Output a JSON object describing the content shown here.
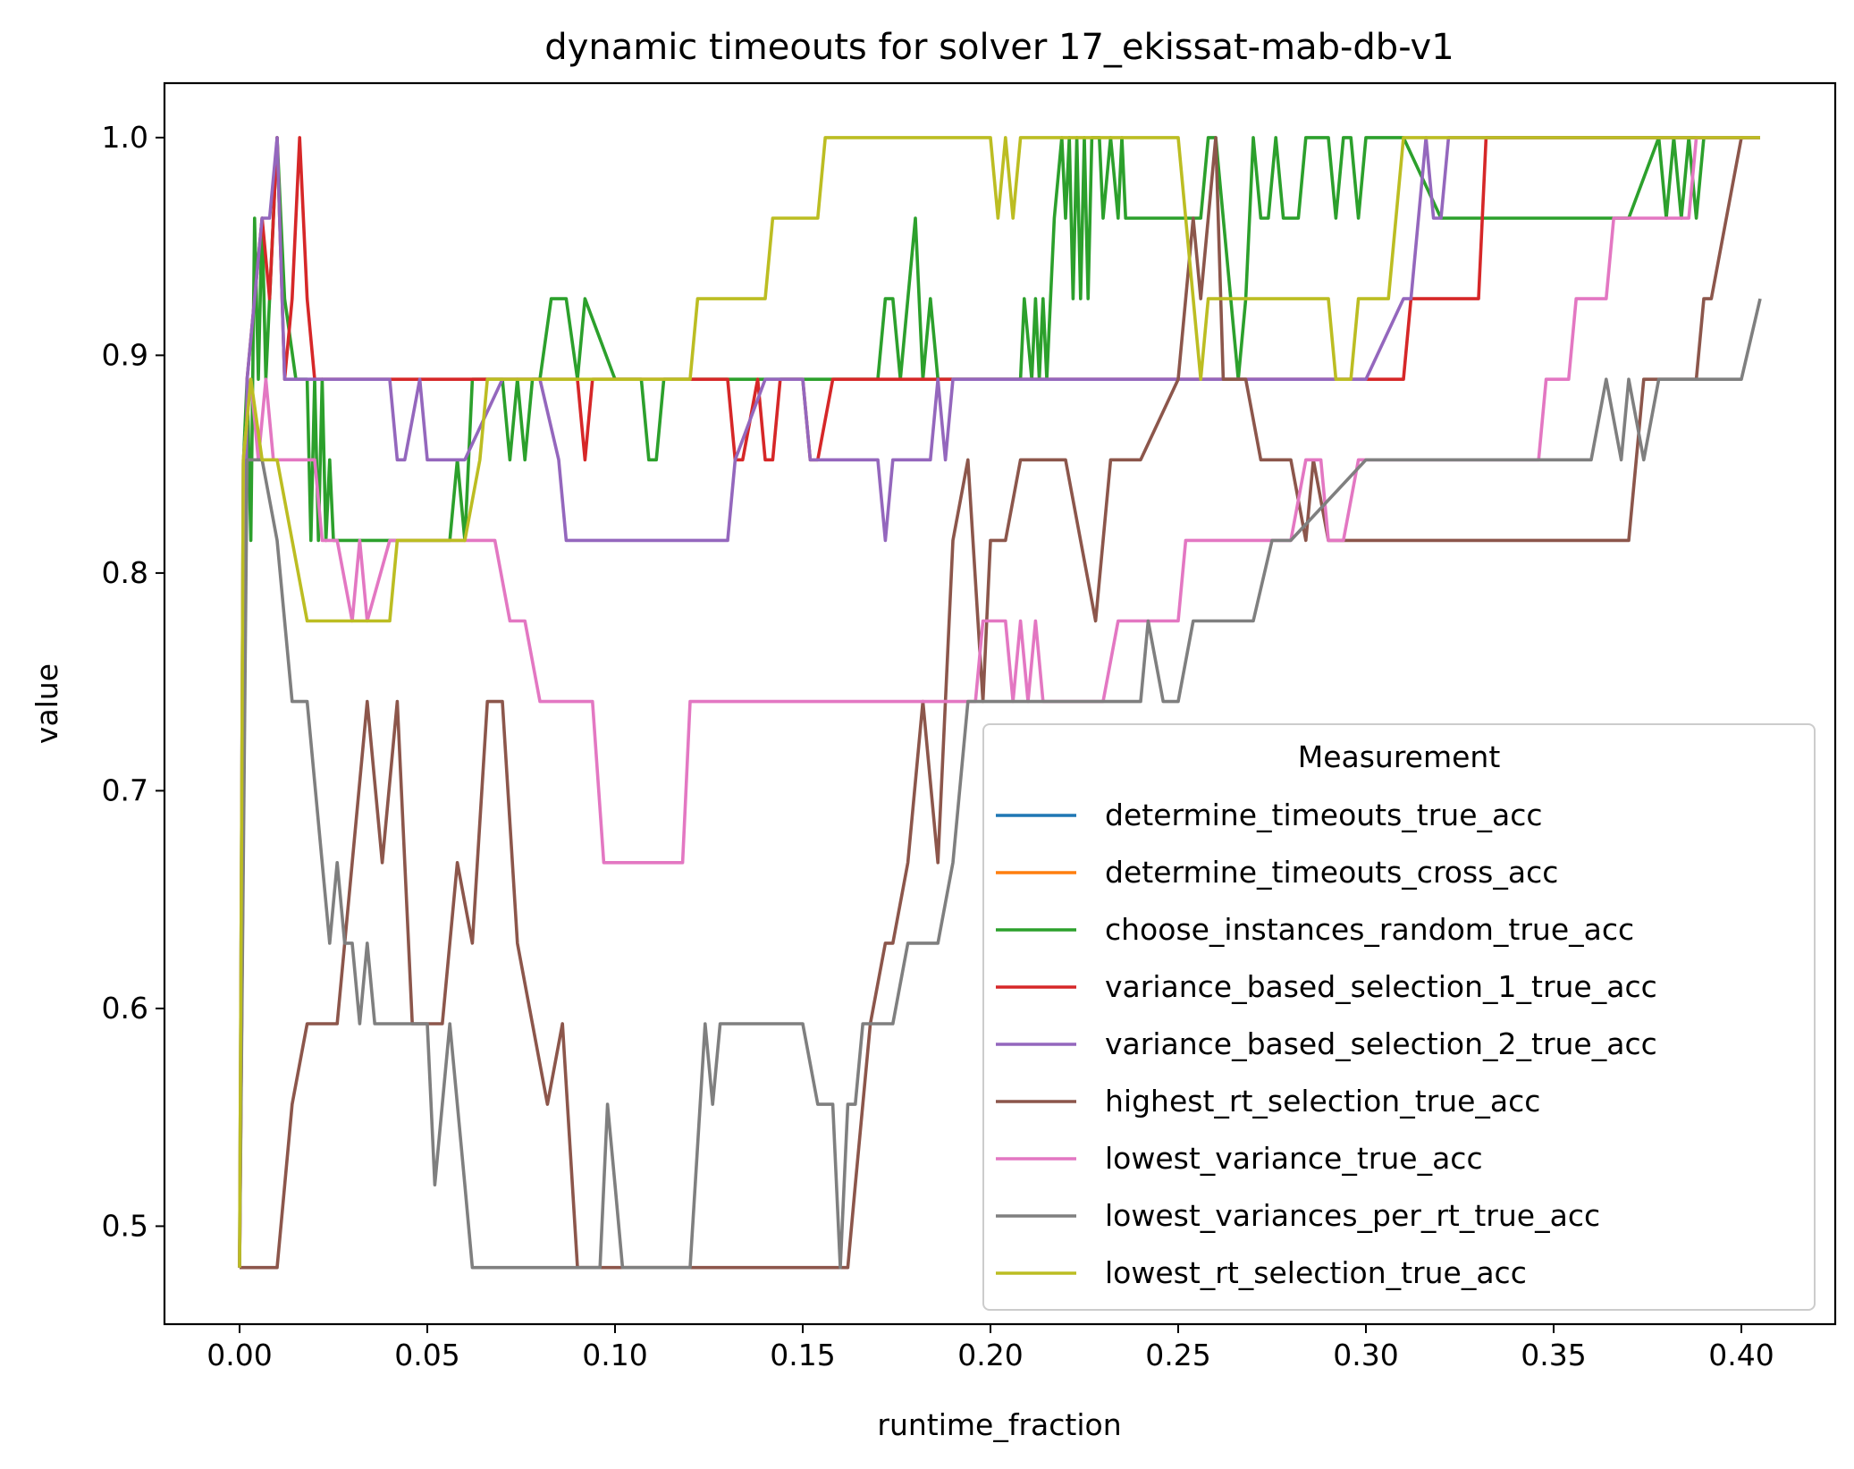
{
  "chart_data": {
    "type": "line",
    "title": "dynamic timeouts for solver 17_ekissat-mab-db-v1",
    "xlabel": "runtime_fraction",
    "ylabel": "value",
    "xlim": [
      -0.02,
      0.425
    ],
    "ylim": [
      0.455,
      1.025
    ],
    "xticks": [
      0.0,
      0.05,
      0.1,
      0.15,
      0.2,
      0.25,
      0.3,
      0.35,
      0.4
    ],
    "xtick_labels": [
      "0.00",
      "0.05",
      "0.10",
      "0.15",
      "0.20",
      "0.25",
      "0.30",
      "0.35",
      "0.40"
    ],
    "yticks": [
      0.5,
      0.6,
      0.7,
      0.8,
      0.9,
      1.0
    ],
    "ytick_labels": [
      "0.5",
      "0.6",
      "0.7",
      "0.8",
      "0.9",
      "1.0"
    ],
    "grid": false,
    "legend": {
      "title": "Measurement",
      "placement": "lower right"
    },
    "series": [
      {
        "name": "determine_timeouts_true_acc",
        "color": "#1f77b4",
        "x": [],
        "y": []
      },
      {
        "name": "determine_timeouts_cross_acc",
        "color": "#ff7f0e",
        "x": [],
        "y": []
      },
      {
        "name": "choose_instances_random_true_acc",
        "color": "#2ca02c",
        "x": [
          0.0,
          0.001,
          0.002,
          0.003,
          0.004,
          0.005,
          0.006,
          0.007,
          0.008,
          0.009,
          0.01,
          0.011,
          0.012,
          0.015,
          0.017,
          0.018,
          0.019,
          0.02,
          0.021,
          0.022,
          0.023,
          0.024,
          0.025,
          0.03,
          0.04,
          0.05,
          0.052,
          0.054,
          0.056,
          0.058,
          0.06,
          0.062,
          0.065,
          0.07,
          0.072,
          0.074,
          0.076,
          0.078,
          0.08,
          0.083,
          0.085,
          0.087,
          0.09,
          0.092,
          0.1,
          0.107,
          0.109,
          0.111,
          0.113,
          0.12,
          0.13,
          0.15,
          0.17,
          0.172,
          0.174,
          0.176,
          0.178,
          0.18,
          0.182,
          0.184,
          0.186,
          0.19,
          0.2,
          0.208,
          0.209,
          0.211,
          0.212,
          0.213,
          0.214,
          0.215,
          0.216,
          0.217,
          0.219,
          0.22,
          0.221,
          0.222,
          0.223,
          0.224,
          0.225,
          0.226,
          0.227,
          0.228,
          0.229,
          0.23,
          0.232,
          0.234,
          0.235,
          0.236,
          0.24,
          0.25,
          0.256,
          0.258,
          0.26,
          0.264,
          0.266,
          0.268,
          0.27,
          0.272,
          0.274,
          0.276,
          0.278,
          0.28,
          0.282,
          0.284,
          0.29,
          0.292,
          0.294,
          0.296,
          0.298,
          0.3,
          0.31,
          0.32,
          0.33,
          0.35,
          0.37,
          0.378,
          0.38,
          0.382,
          0.384,
          0.386,
          0.388,
          0.39,
          0.4,
          0.405
        ],
        "y": [
          0.481,
          0.85,
          0.889,
          0.815,
          0.963,
          0.889,
          0.963,
          0.889,
          0.926,
          0.963,
          1.0,
          0.963,
          0.926,
          0.889,
          0.889,
          0.889,
          0.815,
          0.889,
          0.815,
          0.889,
          0.815,
          0.852,
          0.815,
          0.815,
          0.815,
          0.815,
          0.815,
          0.815,
          0.815,
          0.852,
          0.815,
          0.889,
          0.889,
          0.889,
          0.852,
          0.889,
          0.852,
          0.889,
          0.889,
          0.926,
          0.926,
          0.926,
          0.889,
          0.926,
          0.889,
          0.889,
          0.852,
          0.852,
          0.889,
          0.889,
          0.889,
          0.889,
          0.889,
          0.926,
          0.926,
          0.889,
          0.926,
          0.963,
          0.889,
          0.926,
          0.889,
          0.889,
          0.889,
          0.889,
          0.926,
          0.889,
          0.926,
          0.889,
          0.926,
          0.889,
          0.926,
          0.963,
          1.0,
          0.963,
          1.0,
          0.926,
          1.0,
          0.926,
          1.0,
          0.926,
          1.0,
          1.0,
          1.0,
          0.963,
          1.0,
          0.963,
          1.0,
          0.963,
          0.963,
          0.963,
          0.963,
          1.0,
          1.0,
          0.926,
          0.889,
          0.926,
          1.0,
          0.963,
          0.963,
          1.0,
          0.963,
          0.963,
          0.963,
          1.0,
          1.0,
          0.963,
          1.0,
          1.0,
          0.963,
          1.0,
          1.0,
          0.963,
          0.963,
          0.963,
          0.963,
          1.0,
          0.963,
          1.0,
          0.963,
          1.0,
          0.963,
          1.0,
          1.0,
          1.0
        ]
      },
      {
        "name": "variance_based_selection_1_true_acc",
        "color": "#d62728",
        "x": [
          0.0,
          0.002,
          0.004,
          0.006,
          0.008,
          0.01,
          0.012,
          0.014,
          0.016,
          0.018,
          0.02,
          0.03,
          0.05,
          0.07,
          0.09,
          0.092,
          0.094,
          0.1,
          0.12,
          0.13,
          0.132,
          0.134,
          0.138,
          0.14,
          0.142,
          0.144,
          0.15,
          0.152,
          0.154,
          0.158,
          0.17,
          0.19,
          0.2,
          0.3,
          0.31,
          0.312,
          0.33,
          0.332,
          0.34,
          0.36,
          0.38,
          0.4,
          0.405
        ],
        "y": [
          0.481,
          0.889,
          0.926,
          0.963,
          0.926,
          1.0,
          0.889,
          0.926,
          1.0,
          0.926,
          0.889,
          0.889,
          0.889,
          0.889,
          0.889,
          0.852,
          0.889,
          0.889,
          0.889,
          0.889,
          0.852,
          0.852,
          0.889,
          0.852,
          0.852,
          0.889,
          0.889,
          0.852,
          0.852,
          0.889,
          0.889,
          0.889,
          0.889,
          0.889,
          0.889,
          0.926,
          0.926,
          1.0,
          1.0,
          1.0,
          1.0,
          1.0,
          1.0
        ]
      },
      {
        "name": "variance_based_selection_2_true_acc",
        "color": "#9467bd",
        "x": [
          0.0,
          0.002,
          0.004,
          0.006,
          0.008,
          0.01,
          0.012,
          0.014,
          0.02,
          0.04,
          0.042,
          0.044,
          0.048,
          0.05,
          0.052,
          0.06,
          0.07,
          0.08,
          0.085,
          0.087,
          0.09,
          0.1,
          0.12,
          0.13,
          0.132,
          0.14,
          0.15,
          0.152,
          0.16,
          0.165,
          0.17,
          0.172,
          0.174,
          0.176,
          0.18,
          0.184,
          0.186,
          0.188,
          0.19,
          0.2,
          0.25,
          0.3,
          0.31,
          0.312,
          0.314,
          0.316,
          0.318,
          0.32,
          0.322,
          0.33,
          0.35,
          0.38,
          0.4,
          0.405
        ],
        "y": [
          0.481,
          0.889,
          0.926,
          0.963,
          0.963,
          1.0,
          0.889,
          0.889,
          0.889,
          0.889,
          0.852,
          0.852,
          0.889,
          0.852,
          0.852,
          0.852,
          0.889,
          0.889,
          0.852,
          0.815,
          0.815,
          0.815,
          0.815,
          0.815,
          0.852,
          0.889,
          0.889,
          0.852,
          0.852,
          0.852,
          0.852,
          0.815,
          0.852,
          0.852,
          0.852,
          0.852,
          0.889,
          0.852,
          0.889,
          0.889,
          0.889,
          0.889,
          0.926,
          0.926,
          0.963,
          1.0,
          0.963,
          0.963,
          1.0,
          1.0,
          1.0,
          1.0,
          1.0,
          1.0
        ]
      },
      {
        "name": "highest_rt_selection_true_acc",
        "color": "#8c564b",
        "x": [
          0.0,
          0.002,
          0.01,
          0.014,
          0.018,
          0.022,
          0.026,
          0.03,
          0.034,
          0.038,
          0.042,
          0.046,
          0.05,
          0.054,
          0.058,
          0.062,
          0.066,
          0.068,
          0.07,
          0.074,
          0.078,
          0.082,
          0.086,
          0.09,
          0.092,
          0.095,
          0.1,
          0.11,
          0.12,
          0.14,
          0.16,
          0.162,
          0.164,
          0.168,
          0.172,
          0.174,
          0.178,
          0.182,
          0.186,
          0.19,
          0.194,
          0.198,
          0.2,
          0.204,
          0.208,
          0.212,
          0.216,
          0.22,
          0.224,
          0.228,
          0.232,
          0.234,
          0.236,
          0.24,
          0.25,
          0.254,
          0.256,
          0.258,
          0.26,
          0.262,
          0.264,
          0.268,
          0.272,
          0.274,
          0.28,
          0.284,
          0.286,
          0.29,
          0.3,
          0.32,
          0.34,
          0.36,
          0.37,
          0.372,
          0.374,
          0.38,
          0.385,
          0.388,
          0.39,
          0.392,
          0.4,
          0.405
        ],
        "y": [
          0.481,
          0.481,
          0.481,
          0.556,
          0.593,
          0.593,
          0.593,
          0.667,
          0.741,
          0.667,
          0.741,
          0.593,
          0.593,
          0.593,
          0.667,
          0.63,
          0.741,
          0.741,
          0.741,
          0.63,
          0.593,
          0.556,
          0.593,
          0.481,
          0.481,
          0.481,
          0.481,
          0.481,
          0.481,
          0.481,
          0.481,
          0.481,
          0.519,
          0.593,
          0.63,
          0.63,
          0.667,
          0.741,
          0.667,
          0.815,
          0.852,
          0.741,
          0.815,
          0.815,
          0.852,
          0.852,
          0.852,
          0.852,
          0.815,
          0.778,
          0.852,
          0.852,
          0.852,
          0.852,
          0.889,
          0.963,
          0.926,
          0.963,
          1.0,
          0.889,
          0.889,
          0.889,
          0.852,
          0.852,
          0.852,
          0.815,
          0.852,
          0.815,
          0.815,
          0.815,
          0.815,
          0.815,
          0.815,
          0.852,
          0.889,
          0.889,
          0.889,
          0.889,
          0.926,
          0.926,
          1.0,
          1.0
        ]
      },
      {
        "name": "lowest_variance_true_acc",
        "color": "#e377c2",
        "x": [
          0.0,
          0.001,
          0.003,
          0.005,
          0.007,
          0.009,
          0.012,
          0.02,
          0.022,
          0.026,
          0.03,
          0.032,
          0.034,
          0.04,
          0.05,
          0.06,
          0.066,
          0.068,
          0.072,
          0.076,
          0.08,
          0.09,
          0.094,
          0.097,
          0.1,
          0.11,
          0.118,
          0.12,
          0.13,
          0.15,
          0.17,
          0.19,
          0.194,
          0.196,
          0.198,
          0.2,
          0.204,
          0.206,
          0.208,
          0.21,
          0.212,
          0.214,
          0.22,
          0.23,
          0.234,
          0.238,
          0.24,
          0.25,
          0.252,
          0.256,
          0.26,
          0.27,
          0.28,
          0.284,
          0.288,
          0.29,
          0.294,
          0.298,
          0.3,
          0.32,
          0.34,
          0.346,
          0.348,
          0.35,
          0.354,
          0.356,
          0.36,
          0.364,
          0.366,
          0.37,
          0.38,
          0.386,
          0.388,
          0.39,
          0.4,
          0.405
        ],
        "y": [
          0.481,
          0.852,
          0.889,
          0.852,
          0.889,
          0.852,
          0.852,
          0.852,
          0.815,
          0.815,
          0.778,
          0.815,
          0.778,
          0.815,
          0.815,
          0.815,
          0.815,
          0.815,
          0.778,
          0.778,
          0.741,
          0.741,
          0.741,
          0.667,
          0.667,
          0.667,
          0.667,
          0.741,
          0.741,
          0.741,
          0.741,
          0.741,
          0.741,
          0.741,
          0.778,
          0.778,
          0.778,
          0.741,
          0.778,
          0.741,
          0.778,
          0.741,
          0.741,
          0.741,
          0.778,
          0.778,
          0.778,
          0.778,
          0.815,
          0.815,
          0.815,
          0.815,
          0.815,
          0.852,
          0.852,
          0.815,
          0.815,
          0.852,
          0.852,
          0.852,
          0.852,
          0.852,
          0.889,
          0.889,
          0.889,
          0.926,
          0.926,
          0.926,
          0.963,
          0.963,
          0.963,
          0.963,
          1.0,
          1.0,
          1.0,
          1.0
        ]
      },
      {
        "name": "lowest_variances_per_rt_true_acc",
        "color": "#7f7f7f",
        "x": [
          0.0,
          0.002,
          0.006,
          0.01,
          0.014,
          0.018,
          0.022,
          0.024,
          0.026,
          0.028,
          0.03,
          0.032,
          0.034,
          0.036,
          0.038,
          0.04,
          0.046,
          0.05,
          0.052,
          0.054,
          0.056,
          0.058,
          0.06,
          0.062,
          0.064,
          0.066,
          0.07,
          0.08,
          0.09,
          0.096,
          0.098,
          0.1,
          0.102,
          0.104,
          0.11,
          0.12,
          0.124,
          0.126,
          0.128,
          0.13,
          0.14,
          0.15,
          0.154,
          0.158,
          0.16,
          0.162,
          0.164,
          0.166,
          0.17,
          0.174,
          0.178,
          0.182,
          0.186,
          0.19,
          0.194,
          0.2,
          0.21,
          0.22,
          0.23,
          0.24,
          0.242,
          0.246,
          0.25,
          0.254,
          0.26,
          0.27,
          0.275,
          0.28,
          0.3,
          0.32,
          0.34,
          0.36,
          0.364,
          0.368,
          0.37,
          0.374,
          0.378,
          0.38,
          0.39,
          0.4,
          0.405
        ],
        "y": [
          0.481,
          0.852,
          0.852,
          0.815,
          0.741,
          0.741,
          0.667,
          0.63,
          0.667,
          0.63,
          0.63,
          0.593,
          0.63,
          0.593,
          0.593,
          0.593,
          0.593,
          0.593,
          0.519,
          0.556,
          0.593,
          0.556,
          0.519,
          0.481,
          0.481,
          0.481,
          0.481,
          0.481,
          0.481,
          0.481,
          0.556,
          0.519,
          0.481,
          0.481,
          0.481,
          0.481,
          0.593,
          0.556,
          0.593,
          0.593,
          0.593,
          0.593,
          0.556,
          0.556,
          0.481,
          0.556,
          0.556,
          0.593,
          0.593,
          0.593,
          0.63,
          0.63,
          0.63,
          0.667,
          0.741,
          0.741,
          0.741,
          0.741,
          0.741,
          0.741,
          0.778,
          0.741,
          0.741,
          0.778,
          0.778,
          0.778,
          0.815,
          0.815,
          0.852,
          0.852,
          0.852,
          0.852,
          0.889,
          0.852,
          0.889,
          0.852,
          0.889,
          0.889,
          0.889,
          0.889,
          0.926
        ]
      },
      {
        "name": "lowest_rt_selection_true_acc",
        "color": "#bcbd22",
        "x": [
          0.0,
          0.001,
          0.003,
          0.006,
          0.01,
          0.014,
          0.018,
          0.02,
          0.03,
          0.04,
          0.042,
          0.044,
          0.05,
          0.06,
          0.064,
          0.066,
          0.07,
          0.08,
          0.1,
          0.12,
          0.122,
          0.13,
          0.14,
          0.142,
          0.15,
          0.154,
          0.156,
          0.16,
          0.18,
          0.2,
          0.202,
          0.204,
          0.206,
          0.208,
          0.21,
          0.22,
          0.24,
          0.25,
          0.254,
          0.256,
          0.258,
          0.26,
          0.264,
          0.27,
          0.28,
          0.29,
          0.292,
          0.294,
          0.296,
          0.298,
          0.3,
          0.306,
          0.31,
          0.312,
          0.314,
          0.32,
          0.34,
          0.36,
          0.38,
          0.4,
          0.405
        ],
        "y": [
          0.481,
          0.852,
          0.889,
          0.852,
          0.852,
          0.815,
          0.778,
          0.778,
          0.778,
          0.778,
          0.815,
          0.815,
          0.815,
          0.815,
          0.852,
          0.889,
          0.889,
          0.889,
          0.889,
          0.889,
          0.926,
          0.926,
          0.926,
          0.963,
          0.963,
          0.963,
          1.0,
          1.0,
          1.0,
          1.0,
          0.963,
          1.0,
          0.963,
          1.0,
          1.0,
          1.0,
          1.0,
          1.0,
          0.926,
          0.889,
          0.926,
          0.926,
          0.926,
          0.926,
          0.926,
          0.926,
          0.889,
          0.889,
          0.889,
          0.926,
          0.926,
          0.926,
          1.0,
          1.0,
          1.0,
          1.0,
          1.0,
          1.0,
          1.0,
          1.0,
          1.0
        ]
      }
    ]
  }
}
